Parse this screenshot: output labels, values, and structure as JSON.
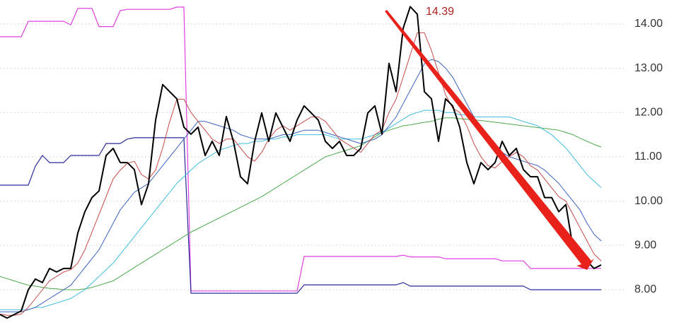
{
  "chart_data": {
    "type": "line",
    "annotation": "14.39",
    "ylim": [
      7.09,
      14.54
    ],
    "yticks": [
      {
        "value": 8,
        "label": "8.00"
      },
      {
        "value": 9,
        "label": "9.00"
      },
      {
        "value": 10,
        "label": "10.00"
      },
      {
        "value": 11,
        "label": "11.00"
      },
      {
        "value": 12,
        "label": "12.00"
      },
      {
        "value": 13,
        "label": "13.00"
      },
      {
        "value": 14,
        "label": "14.00"
      }
    ],
    "grid": true,
    "series": [
      {
        "color": "#e040e0",
        "width": 1.2,
        "values": [
          13.71,
          13.71,
          13.71,
          13.71,
          14.06,
          14.06,
          14.06,
          14.06,
          14.06,
          14.06,
          13.98,
          14.35,
          14.35,
          14.35,
          13.94,
          13.94,
          13.94,
          14.3,
          14.33,
          14.33,
          14.33,
          14.33,
          14.33,
          14.33,
          14.33,
          14.38,
          14.38,
          7.97,
          7.97,
          7.97,
          7.97,
          7.97,
          7.97,
          7.97,
          7.97,
          7.97,
          7.97,
          7.97,
          7.97,
          7.97,
          7.97,
          7.97,
          7.97,
          8.75,
          8.75,
          8.75,
          8.75,
          8.75,
          8.75,
          8.75,
          8.75,
          8.75,
          8.75,
          8.75,
          8.75,
          8.75,
          8.75,
          8.78,
          8.74,
          8.74,
          8.74,
          8.74,
          8.74,
          8.7,
          8.7,
          8.7,
          8.7,
          8.7,
          8.7,
          8.7,
          8.7,
          8.65,
          8.65,
          8.65,
          8.65,
          8.48,
          8.48,
          8.48,
          8.48,
          8.48,
          8.48,
          8.48,
          8.48,
          8.48,
          8.48,
          8.48
        ]
      },
      {
        "color": "#2a2a9a",
        "width": 1.2,
        "values": [
          10.36,
          10.36,
          10.36,
          10.36,
          10.36,
          10.79,
          11.03,
          10.87,
          10.87,
          10.87,
          11.03,
          11.03,
          11.03,
          11.03,
          11.03,
          11.3,
          11.3,
          11.3,
          11.4,
          11.43,
          11.43,
          11.43,
          11.43,
          11.43,
          11.43,
          11.43,
          11.43,
          7.92,
          7.92,
          7.92,
          7.92,
          7.92,
          7.92,
          7.92,
          7.92,
          7.92,
          7.92,
          7.92,
          7.92,
          7.92,
          7.92,
          7.92,
          7.92,
          8.11,
          8.11,
          8.11,
          8.11,
          8.11,
          8.11,
          8.11,
          8.11,
          8.11,
          8.11,
          8.11,
          8.11,
          8.11,
          8.11,
          8.16,
          8.08,
          8.08,
          8.08,
          8.08,
          8.08,
          8.08,
          8.08,
          8.08,
          8.08,
          8.08,
          8.08,
          8.08,
          8.08,
          8.08,
          8.08,
          8.08,
          8.08,
          8,
          8,
          8,
          8,
          8,
          8,
          8,
          8,
          8,
          8,
          8
        ]
      },
      {
        "color": "#4aa84a",
        "width": 1,
        "values": [
          8.3,
          8.25,
          8.2,
          8.15,
          8.1,
          8.08,
          8.05,
          8.03,
          8.02,
          8,
          8,
          8,
          8.02,
          8.05,
          8.1,
          8.15,
          8.2,
          8.3,
          8.4,
          8.5,
          8.6,
          8.7,
          8.8,
          8.9,
          9,
          9.1,
          9.2,
          9.3,
          9.38,
          9.46,
          9.54,
          9.62,
          9.7,
          9.78,
          9.86,
          9.94,
          10.02,
          10.1,
          10.2,
          10.3,
          10.4,
          10.5,
          10.6,
          10.7,
          10.8,
          10.9,
          11,
          11.05,
          11.1,
          11.15,
          11.2,
          11.25,
          11.35,
          11.45,
          11.55,
          11.6,
          11.65,
          11.7,
          11.72,
          11.75,
          11.78,
          11.8,
          11.85,
          11.88,
          11.88,
          11.86,
          11.85,
          11.83,
          11.82,
          11.8,
          11.78,
          11.76,
          11.74,
          11.72,
          11.7,
          11.68,
          11.66,
          11.64,
          11.62,
          11.6,
          11.55,
          11.5,
          11.42,
          11.35,
          11.28,
          11.22
        ]
      },
      {
        "color": "#40bde0",
        "width": 1,
        "values": [
          7.55,
          7.55,
          7.55,
          7.55,
          7.55,
          7.6,
          7.6,
          7.65,
          7.7,
          7.75,
          7.8,
          7.9,
          8,
          8.15,
          8.3,
          8.45,
          8.6,
          8.8,
          9,
          9.2,
          9.4,
          9.6,
          9.8,
          10,
          10.2,
          10.4,
          10.55,
          10.7,
          10.85,
          10.95,
          11.05,
          11.15,
          11.2,
          11.25,
          11.3,
          11.3,
          11.35,
          11.35,
          11.4,
          11.4,
          11.45,
          11.45,
          11.5,
          11.5,
          11.5,
          11.5,
          11.5,
          11.45,
          11.4,
          11.4,
          11.4,
          11.4,
          11.45,
          11.5,
          11.55,
          11.65,
          11.75,
          11.85,
          11.95,
          12,
          12.05,
          12.05,
          12.05,
          12,
          12,
          11.95,
          11.95,
          11.9,
          11.9,
          11.9,
          11.9,
          11.9,
          11.9,
          11.85,
          11.8,
          11.75,
          11.7,
          11.6,
          11.5,
          11.35,
          11.2,
          11,
          10.8,
          10.6,
          10.45,
          10.3
        ]
      },
      {
        "color": "#3a62c0",
        "width": 1,
        "values": [
          7.5,
          7.5,
          7.5,
          7.5,
          7.55,
          7.6,
          7.7,
          7.8,
          7.9,
          8,
          8.1,
          8.3,
          8.5,
          8.7,
          8.9,
          9.2,
          9.5,
          9.8,
          10,
          10.2,
          10.3,
          10.4,
          10.6,
          10.8,
          11,
          11.2,
          11.4,
          11.6,
          11.8,
          11.8,
          11.75,
          11.7,
          11.65,
          11.6,
          11.5,
          11.45,
          11.4,
          11.4,
          11.4,
          11.45,
          11.5,
          11.5,
          11.55,
          11.6,
          11.6,
          11.6,
          11.55,
          11.5,
          11.45,
          11.4,
          11.35,
          11.3,
          11.35,
          11.4,
          11.5,
          11.7,
          11.9,
          12.2,
          12.5,
          12.8,
          13.1,
          13.2,
          13.15,
          13,
          12.8,
          12.5,
          12.2,
          11.9,
          11.6,
          11.4,
          11.2,
          11.1,
          11,
          10.95,
          10.9,
          10.85,
          10.8,
          10.7,
          10.55,
          10.4,
          10.2,
          10,
          9.8,
          9.5,
          9.25,
          9.1
        ]
      },
      {
        "color": "#c84848",
        "width": 1,
        "values": [
          7.45,
          7.42,
          7.42,
          7.45,
          7.6,
          7.8,
          8,
          8.2,
          8.3,
          8.4,
          8.45,
          8.6,
          8.9,
          9.3,
          9.7,
          10.1,
          10.5,
          10.7,
          10.85,
          10.9,
          10.6,
          10.5,
          10.7,
          11.2,
          11.8,
          12.3,
          12.3,
          12,
          11.8,
          11.6,
          11.4,
          11.3,
          11.4,
          11.4,
          11.2,
          11,
          10.9,
          11.1,
          11.4,
          11.6,
          11.7,
          11.6,
          11.7,
          11.8,
          11.9,
          11.9,
          11.8,
          11.6,
          11.4,
          11.3,
          11.2,
          11.1,
          11.3,
          11.5,
          11.6,
          12,
          12.3,
          12.8,
          13.3,
          13.8,
          13.8,
          13.4,
          12.9,
          12.4,
          12.1,
          12,
          11.7,
          11.3,
          11,
          10.8,
          10.75,
          10.9,
          11,
          11.1,
          11,
          10.8,
          10.7,
          10.5,
          10.3,
          10.1,
          10,
          9.7,
          9.4,
          9.1,
          8.8,
          8.65
        ]
      },
      {
        "color": "#000000",
        "width": 2,
        "values": [
          7.44,
          7.36,
          7.44,
          7.52,
          8,
          8.24,
          8.16,
          8.48,
          8.4,
          8.48,
          8.48,
          9.28,
          9.76,
          10.08,
          10.23,
          11.03,
          11.19,
          10.87,
          10.87,
          10.71,
          9.92,
          10.39,
          11.83,
          12.63,
          12.47,
          12.31,
          11.67,
          11.51,
          11.67,
          11.03,
          11.35,
          11.03,
          11.91,
          11.35,
          10.55,
          10.39,
          11.35,
          11.99,
          11.35,
          11.99,
          11.67,
          11.35,
          11.83,
          12.15,
          11.99,
          11.83,
          11.35,
          11.19,
          11.35,
          11.03,
          11.03,
          11.19,
          11.99,
          12.15,
          11.51,
          13.11,
          12.47,
          13.9,
          14.39,
          14.22,
          12.47,
          12.31,
          11.35,
          12.31,
          12.15,
          11.67,
          10.87,
          10.39,
          10.87,
          10.71,
          10.87,
          11.35,
          11.03,
          11.19,
          10.71,
          10.55,
          10.55,
          10.08,
          10.08,
          9.76,
          9.92,
          8.96,
          8.8,
          8.64,
          8.48,
          8.56
        ]
      }
    ]
  }
}
